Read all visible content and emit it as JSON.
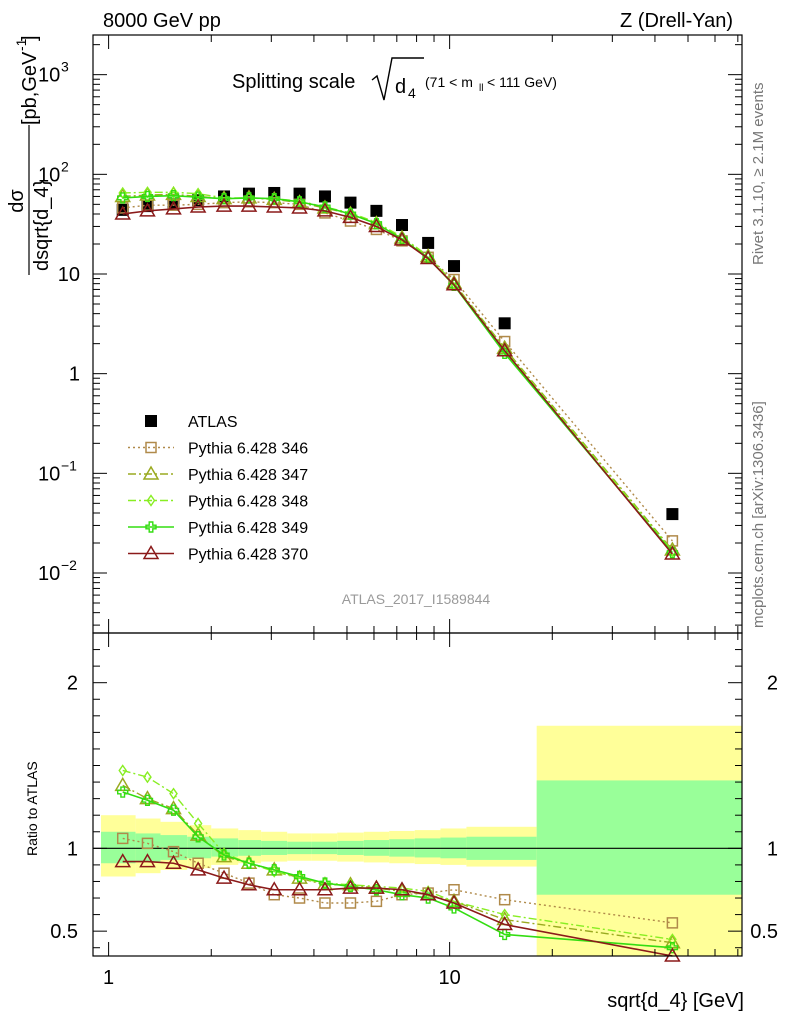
{
  "header": {
    "left": "8000 GeV pp",
    "right": "Z (Drell-Yan)"
  },
  "side_text": {
    "rivet": "Rivet 3.1.10, ≥ 2.1M events",
    "mcplots": "mcplots.cern.ch [arXiv:1306.3436]"
  },
  "analysis_id": "ATLAS_2017_I1589844",
  "chart_data": [
    {
      "type": "scatter",
      "title": "Splitting scale √d₄ (71 < mₗₗ < 111 GeV)",
      "title_main": "Splitting scale",
      "title_root": "d",
      "title_sub": "4",
      "title_range_a": "(71 < m",
      "title_range_sub": "ll",
      "title_range_b": " < 111 GeV)",
      "ylabel_num": "dσ",
      "ylabel_den": "dsqrt{d_4}",
      "ylabel_units": "[pb,GeV",
      "ylabel_units_sup": "-1",
      "ylabel_units_close": "]",
      "xlabel": "sqrt{d_4} [GeV]",
      "xscale": "log",
      "yscale": "log",
      "xlim": [
        0.9,
        72
      ],
      "ylim": [
        0.0025,
        2500
      ],
      "yticks": [
        {
          "value": 0.01,
          "base": "10",
          "exp": "−2"
        },
        {
          "value": 0.1,
          "base": "10",
          "exp": "−1"
        },
        {
          "value": 1,
          "base": "1",
          "exp": ""
        },
        {
          "value": 10,
          "base": "10",
          "exp": ""
        },
        {
          "value": 100,
          "base": "10",
          "exp": "2"
        },
        {
          "value": 1000,
          "base": "10",
          "exp": "3"
        }
      ],
      "xticks": [
        {
          "value": 1,
          "label": "1"
        },
        {
          "value": 10,
          "label": "10"
        }
      ],
      "legend_position": "center-left",
      "x": [
        1.1,
        1.3,
        1.55,
        1.83,
        2.18,
        2.58,
        3.06,
        3.63,
        4.31,
        5.12,
        6.1,
        7.25,
        8.65,
        10.3,
        14.5,
        45
      ],
      "series": [
        {
          "name": "ATLAS",
          "color": "#000000",
          "marker": "square-filled",
          "line": "none",
          "values": [
            44,
            48,
            50,
            55,
            60,
            64,
            65,
            64,
            60,
            52,
            43,
            31,
            20.5,
            12,
            3.2,
            0.039
          ]
        },
        {
          "name": "Pythia 6.428 346",
          "color": "#b08a4a",
          "marker": "square-open",
          "line": "dotted",
          "values": [
            46,
            49,
            49,
            50,
            52,
            53,
            52,
            50,
            41,
            34,
            28,
            21.5,
            14.7,
            8.8,
            2.1,
            0.021
          ]
        },
        {
          "name": "Pythia 6.428 347",
          "color": "#9aaa20",
          "marker": "triangle-open",
          "line": "dashdot",
          "values": [
            60,
            62,
            63,
            60,
            57,
            58,
            56,
            52,
            46,
            40,
            32,
            23,
            15,
            8.1,
            1.8,
            0.017
          ]
        },
        {
          "name": "Pythia 6.428 348",
          "color": "#88ee22",
          "marker": "diamond-open",
          "line": "dashdot",
          "values": [
            65,
            66,
            66,
            64,
            58,
            58,
            57,
            54,
            47,
            41,
            33,
            23.5,
            15.2,
            8.0,
            1.75,
            0.0165
          ]
        },
        {
          "name": "Pythia 6.428 349",
          "color": "#33dd11",
          "marker": "cross-open",
          "line": "solid",
          "values": [
            58,
            60,
            61,
            59,
            57,
            58,
            57,
            53,
            47,
            40,
            32,
            22.5,
            14.5,
            7.7,
            1.6,
            0.016
          ]
        },
        {
          "name": "Pythia 6.428 370",
          "color": "#8b1a1a",
          "marker": "triangle-open",
          "line": "solid",
          "values": [
            40,
            43,
            45,
            47,
            48,
            48,
            47,
            46,
            43,
            37,
            30,
            22,
            14.3,
            7.8,
            1.7,
            0.0155
          ]
        }
      ]
    },
    {
      "type": "line",
      "ylabel": "Ratio to ATLAS",
      "xscale": "log",
      "xlim": [
        0.9,
        72
      ],
      "ylim": [
        0.35,
        2.3
      ],
      "yticks": [
        {
          "value": 0.5,
          "label": "0.5"
        },
        {
          "value": 1,
          "label": "1"
        },
        {
          "value": 2,
          "label": "2"
        }
      ],
      "xticks": [
        {
          "value": 1,
          "label": "1"
        },
        {
          "value": 10,
          "label": "10"
        }
      ],
      "band_edges": [
        0.95,
        1.2,
        1.42,
        1.7,
        2.0,
        2.4,
        2.8,
        3.34,
        3.94,
        4.68,
        5.6,
        6.65,
        7.9,
        9.4,
        11.2,
        18,
        72
      ],
      "stat_band": [
        [
          0.91,
          1.1
        ],
        [
          0.92,
          1.09
        ],
        [
          0.93,
          1.08
        ],
        [
          0.94,
          1.07
        ],
        [
          0.95,
          1.06
        ],
        [
          0.955,
          1.05
        ],
        [
          0.96,
          1.045
        ],
        [
          0.965,
          1.04
        ],
        [
          0.965,
          1.04
        ],
        [
          0.96,
          1.045
        ],
        [
          0.955,
          1.05
        ],
        [
          0.95,
          1.055
        ],
        [
          0.945,
          1.06
        ],
        [
          0.94,
          1.065
        ],
        [
          0.93,
          1.07
        ],
        [
          0.72,
          1.41
        ]
      ],
      "total_band": [
        [
          0.83,
          1.2
        ],
        [
          0.85,
          1.18
        ],
        [
          0.87,
          1.16
        ],
        [
          0.88,
          1.14
        ],
        [
          0.9,
          1.12
        ],
        [
          0.91,
          1.11
        ],
        [
          0.92,
          1.1
        ],
        [
          0.925,
          1.09
        ],
        [
          0.925,
          1.09
        ],
        [
          0.92,
          1.095
        ],
        [
          0.915,
          1.1
        ],
        [
          0.91,
          1.105
        ],
        [
          0.905,
          1.11
        ],
        [
          0.9,
          1.12
        ],
        [
          0.89,
          1.13
        ],
        [
          0.35,
          1.74
        ]
      ],
      "x": [
        1.1,
        1.3,
        1.55,
        1.83,
        2.18,
        2.58,
        3.06,
        3.63,
        4.31,
        5.12,
        6.1,
        7.25,
        8.65,
        10.3,
        14.5,
        45
      ],
      "series": [
        {
          "name": "Pythia 6.428 346",
          "color": "#b08a4a",
          "marker": "square-open",
          "line": "dotted",
          "values": [
            1.06,
            1.03,
            0.98,
            0.91,
            0.85,
            0.79,
            0.72,
            0.7,
            0.67,
            0.67,
            0.68,
            0.72,
            0.73,
            0.75,
            0.69,
            0.55
          ]
        },
        {
          "name": "Pythia 6.428 347",
          "color": "#9aaa20",
          "marker": "triangle-open",
          "line": "dashdot",
          "values": [
            1.38,
            1.3,
            1.24,
            1.08,
            0.95,
            0.91,
            0.87,
            0.82,
            0.78,
            0.78,
            0.76,
            0.74,
            0.72,
            0.68,
            0.57,
            0.43
          ]
        },
        {
          "name": "Pythia 6.428 348",
          "color": "#88ee22",
          "marker": "diamond-open",
          "line": "dashdot",
          "values": [
            1.47,
            1.43,
            1.33,
            1.15,
            0.97,
            0.91,
            0.86,
            0.82,
            0.79,
            0.78,
            0.77,
            0.76,
            0.74,
            0.68,
            0.6,
            0.45
          ]
        },
        {
          "name": "Pythia 6.428 349",
          "color": "#33dd11",
          "marker": "cross-open",
          "line": "solid",
          "values": [
            1.34,
            1.29,
            1.23,
            1.07,
            0.96,
            0.91,
            0.87,
            0.83,
            0.79,
            0.77,
            0.75,
            0.72,
            0.7,
            0.64,
            0.48,
            0.4
          ]
        },
        {
          "name": "Pythia 6.428 370",
          "color": "#8b1a1a",
          "marker": "triangle-open",
          "line": "solid",
          "values": [
            0.92,
            0.92,
            0.91,
            0.87,
            0.82,
            0.78,
            0.75,
            0.75,
            0.75,
            0.76,
            0.76,
            0.75,
            0.72,
            0.67,
            0.54,
            0.35
          ]
        }
      ]
    }
  ]
}
